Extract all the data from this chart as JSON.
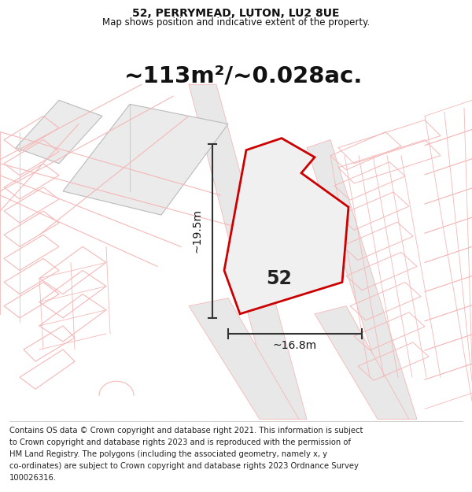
{
  "title_line1": "52, PERRYMEAD, LUTON, LU2 8UE",
  "title_line2": "Map shows position and indicative extent of the property.",
  "area_text": "~113m²/~0.028ac.",
  "property_number": "52",
  "dim_height": "~19.5m",
  "dim_width": "~16.8m",
  "footer_lines": [
    "Contains OS data © Crown copyright and database right 2021. This information is subject",
    "to Crown copyright and database rights 2023 and is reproduced with the permission of",
    "HM Land Registry. The polygons (including the associated geometry, namely x, y",
    "co-ordinates) are subject to Crown copyright and database rights 2023 Ordnance Survey",
    "100026316."
  ],
  "bg_color": "#ffffff",
  "gray_fill": "#e0e0e0",
  "gray_fill_light": "#ebebeb",
  "pink": "#f5b8b8",
  "red": "#cc0000",
  "dark": "#333333",
  "title_fontsize": 10,
  "subtitle_fontsize": 8.5,
  "area_fontsize": 21,
  "number_fontsize": 17,
  "dim_fontsize": 10,
  "footer_fontsize": 7.2
}
